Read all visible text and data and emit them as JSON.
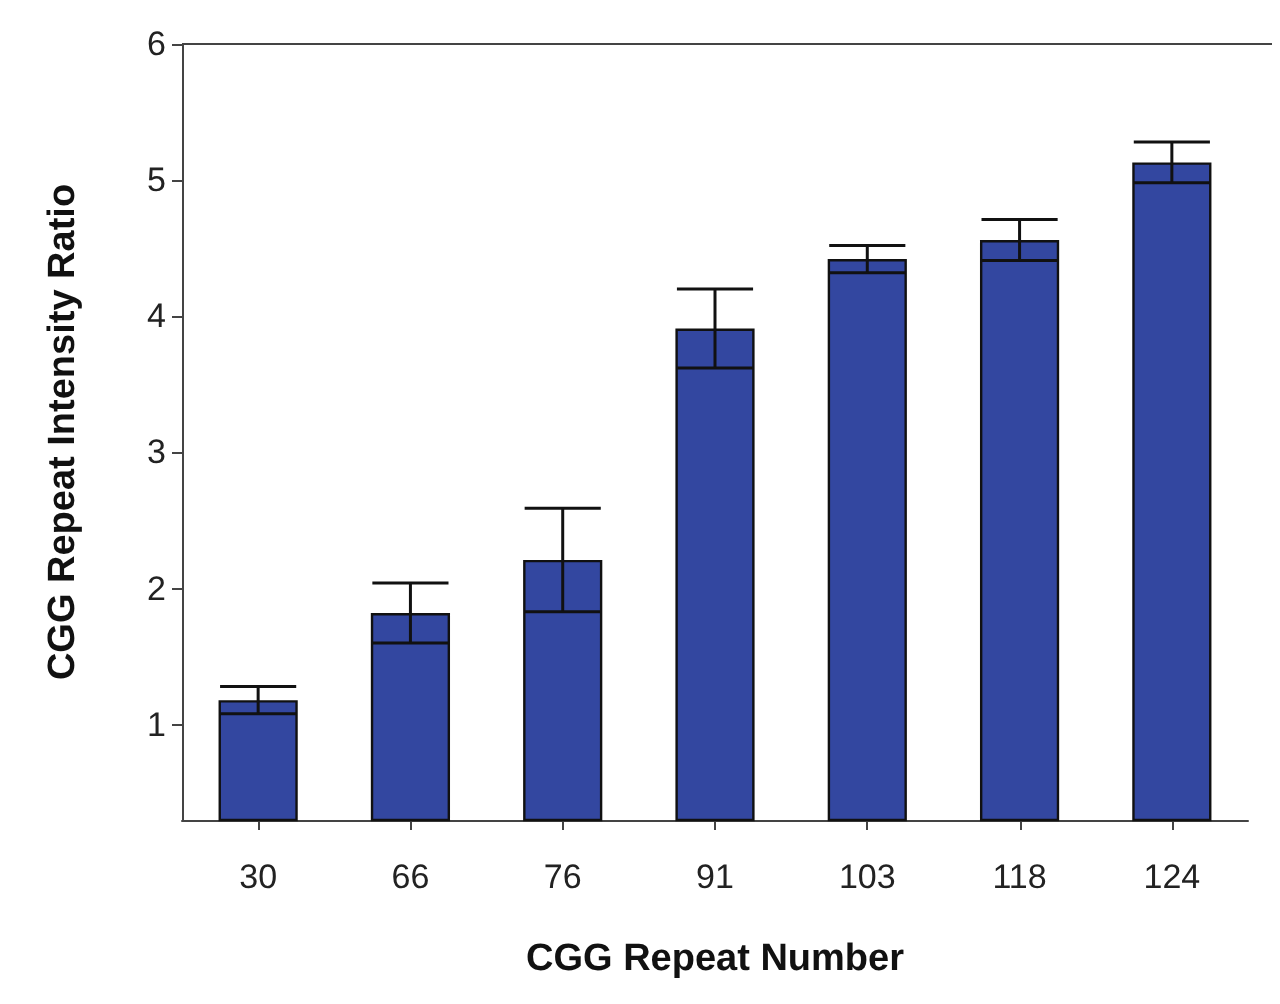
{
  "chart_data": {
    "type": "bar",
    "xlabel": "CGG Repeat Number",
    "ylabel": "CGG Repeat Intensity Ratio",
    "categories": [
      "30",
      "66",
      "76",
      "91",
      "103",
      "118",
      "124"
    ],
    "values": [
      1.18,
      1.82,
      2.21,
      3.91,
      4.42,
      4.56,
      5.13
    ],
    "errors": [
      0.1,
      0.22,
      0.38,
      0.29,
      0.1,
      0.15,
      0.15
    ],
    "color": "#3347a0",
    "ylim": [
      0.3,
      6
    ],
    "yticks": [
      1,
      2,
      3,
      4,
      5,
      6
    ],
    "grid": false
  }
}
